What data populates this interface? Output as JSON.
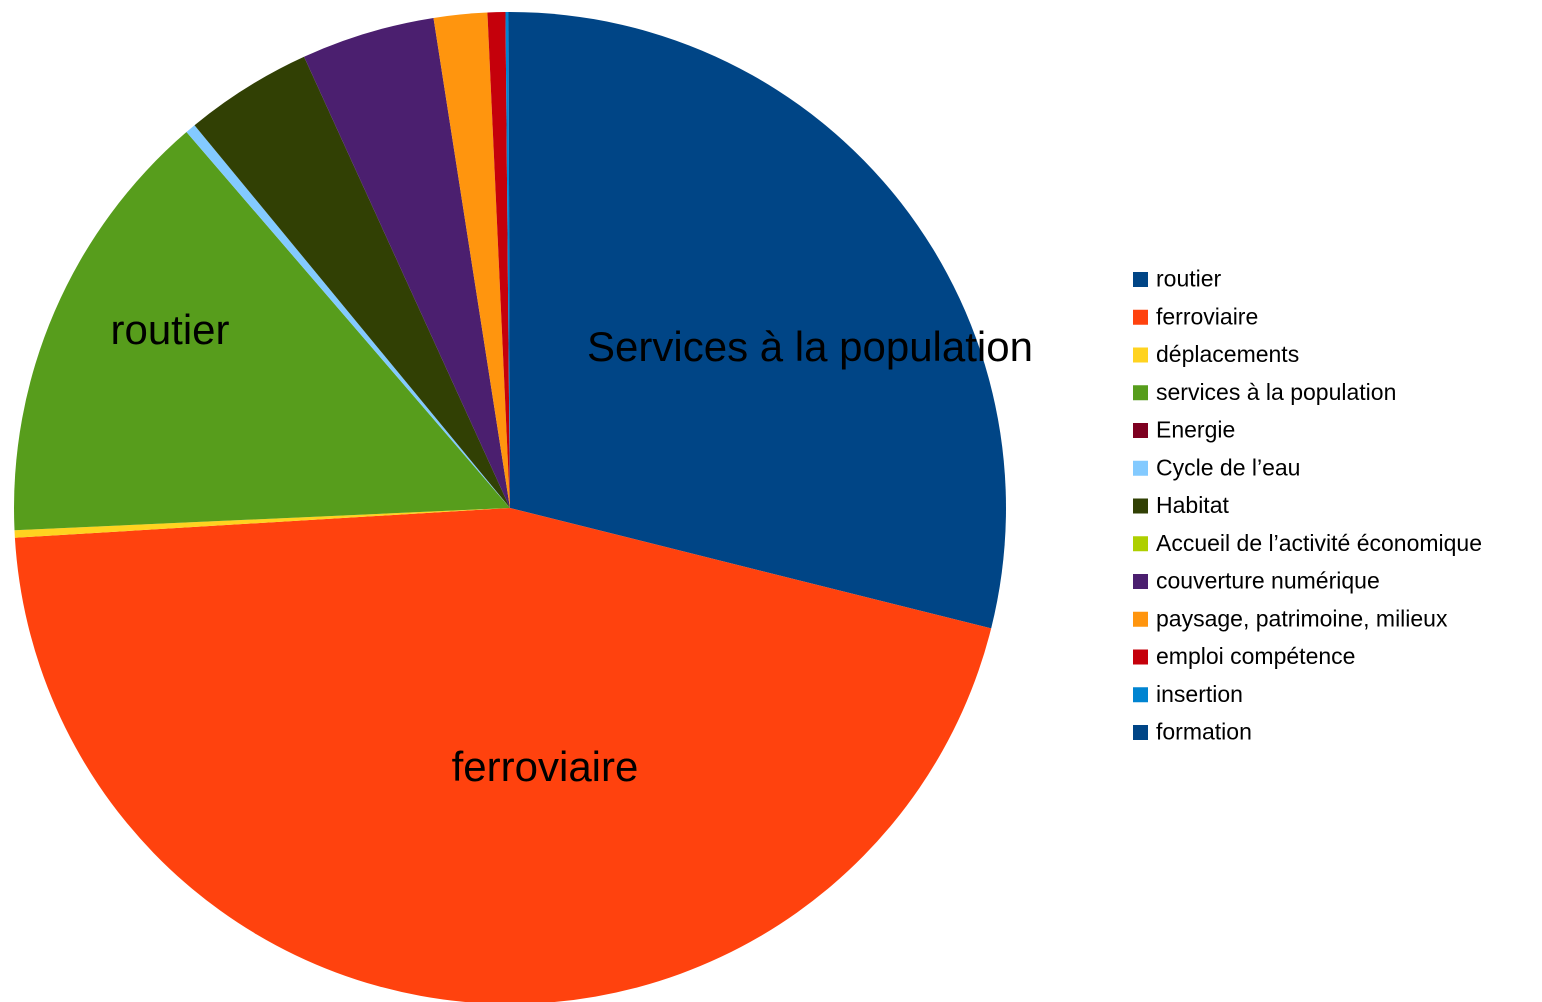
{
  "chart_data": {
    "type": "pie",
    "title": "",
    "legend_position": "right",
    "slices": [
      {
        "label": "routier",
        "value": 29.9,
        "color": "#004586"
      },
      {
        "label": "ferroviaire",
        "value": 46.7,
        "color": "#ff420e"
      },
      {
        "label": "déplacements",
        "value": 0.25,
        "color": "#ffd320"
      },
      {
        "label": "services à la population",
        "value": 14.9,
        "color": "#579d1c"
      },
      {
        "label": "Energie",
        "value": 0.0,
        "color": "#7e0021"
      },
      {
        "label": "Cycle de l’eau",
        "value": 0.35,
        "color": "#83caff"
      },
      {
        "label": "Habitat",
        "value": 4.3,
        "color": "#314004"
      },
      {
        "label": "Accueil de l’activité économique",
        "value": 0.0,
        "color": "#aecf00"
      },
      {
        "label": "couverture numérique",
        "value": 4.5,
        "color": "#4b1f6f"
      },
      {
        "label": "paysage, patrimoine, milieux",
        "value": 1.8,
        "color": "#ff950e"
      },
      {
        "label": "emploi compétence",
        "value": 0.6,
        "color": "#c5000b"
      },
      {
        "label": "insertion",
        "value": 0.1,
        "color": "#0084d1"
      },
      {
        "label": "formation",
        "value": 0.05,
        "color": "#004586"
      }
    ],
    "slice_labels": [
      {
        "slice": "routier",
        "text": "routier"
      },
      {
        "slice": "ferroviaire",
        "text": "ferroviaire"
      },
      {
        "slice": "services à la population",
        "text": "Services à la population"
      }
    ]
  }
}
